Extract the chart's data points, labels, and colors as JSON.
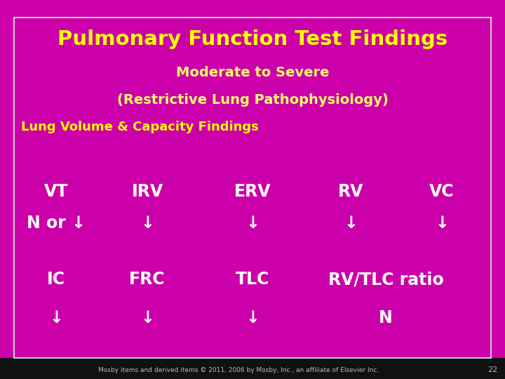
{
  "title_line1": "Pulmonary Function Test Findings",
  "title_line2": "Moderate to Severe",
  "title_line3": "(Restrictive Lung Pathophysiology)",
  "subtitle": "Lung Volume & Capacity Findings",
  "title_bg": "#00BFFF",
  "subtitle_bg": "#880066",
  "content_bg": "#CC00BB",
  "outer_bg": "#CC00AA",
  "footer_bg": "#111111",
  "border_color": "#CCCCCC",
  "title_color1": "#FFFF00",
  "title_color2": "#FFFF66",
  "subtitle_color": "#FFFF00",
  "white": "#FFFFFF",
  "footer_text": "Mosby items and derived items © 2011, 2006 by Mosby, Inc., an affiliate of Elsevier Inc.",
  "page_num": "22",
  "row1_labels": [
    "VT",
    "IRV",
    "ERV",
    "RV",
    "VC"
  ],
  "row1_sublabels": [
    "N or ↓",
    "↓",
    "↓",
    "↓",
    "↓"
  ],
  "row2_labels": [
    "IC",
    "FRC",
    "TLC",
    "RV/TLC ratio"
  ],
  "row2_sublabels": [
    "↓",
    "↓",
    "↓",
    "N"
  ],
  "fig_width": 7.2,
  "fig_height": 5.4,
  "dpi": 100
}
